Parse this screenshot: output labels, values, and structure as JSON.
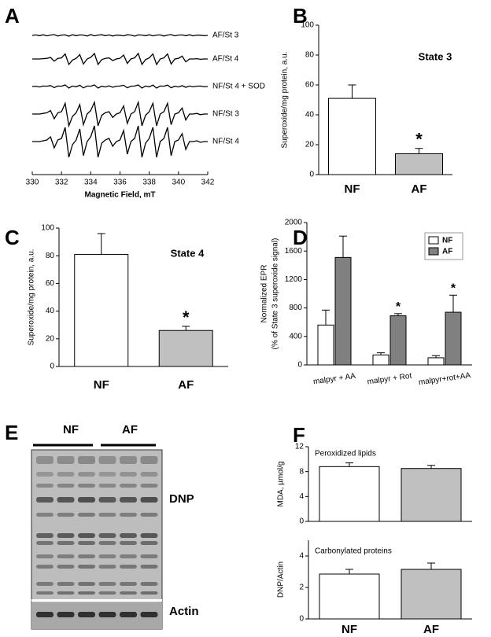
{
  "chart_data": [
    {
      "panel": "A",
      "type": "line",
      "x": [
        330,
        330.25,
        330.5,
        330.75,
        331,
        331.25,
        331.5,
        331.75,
        332,
        332.25,
        332.5,
        332.75,
        333,
        333.25,
        333.5,
        333.75,
        334,
        334.25,
        334.5,
        334.75,
        335,
        335.25,
        335.5,
        335.75,
        336,
        336.25,
        336.5,
        336.75,
        337,
        337.25,
        337.5,
        337.75,
        338,
        338.25,
        338.5,
        338.75,
        339,
        339.25,
        339.5,
        339.75,
        340,
        340.25,
        340.5,
        340.75,
        341,
        341.25,
        341.5,
        341.75,
        342
      ],
      "xlim": [
        330,
        342
      ],
      "xticks": [
        330,
        332,
        334,
        336,
        338,
        340,
        342
      ],
      "xlabel": "Magnetic Field, mT",
      "series": [
        {
          "name": "AF/St 3",
          "color": "#000000",
          "values": [
            0,
            0.03,
            -0.02,
            0.04,
            -0.03,
            0.02,
            0.05,
            -0.04,
            0.02,
            0.03,
            -0.05,
            0.04,
            -0.02,
            0.03,
            0.02,
            -0.04,
            0.05,
            -0.03,
            0.02,
            0.04,
            -0.02,
            0.03,
            -0.04,
            0.02,
            0.01,
            -0.03,
            0.04,
            0.02,
            -0.05,
            0.03,
            0.02,
            -0.02,
            0.04,
            -0.03,
            0.02,
            0.03,
            -0.04,
            0.02,
            0.05,
            -0.03,
            0.02,
            0.03,
            -0.02,
            0.04,
            -0.03,
            0.02,
            0.01,
            -0.02,
            0
          ]
        },
        {
          "name": "AF/St 4",
          "color": "#000000",
          "values": [
            0,
            0,
            0,
            0.02,
            0.04,
            0.1,
            -0.14,
            0.04,
            0.07,
            0.32,
            -0.35,
            -0.07,
            0.04,
            0.28,
            -0.32,
            0,
            0.1,
            0.35,
            -0.35,
            -0.04,
            0.04,
            0.07,
            -0.1,
            0,
            0.04,
            0.25,
            -0.28,
            0,
            0.07,
            0.35,
            -0.35,
            -0.04,
            0.07,
            0.32,
            -0.35,
            0,
            0.07,
            0.32,
            -0.32,
            0,
            0.04,
            0.18,
            -0.18,
            0,
            0,
            0.02,
            -0.02,
            0,
            0
          ]
        },
        {
          "name": "NF/St 4 + SOD",
          "color": "#000000",
          "values": [
            0,
            0.02,
            -0.03,
            0.03,
            0.02,
            0.06,
            -0.07,
            0.03,
            0.02,
            0.1,
            -0.1,
            0.03,
            -0.02,
            0.08,
            -0.09,
            0.03,
            0.02,
            0.1,
            -0.1,
            0.02,
            -0.03,
            0.04,
            -0.05,
            0.02,
            0.03,
            0.08,
            -0.08,
            0.02,
            0.03,
            0.1,
            -0.1,
            0.03,
            -0.02,
            0.09,
            -0.1,
            0.03,
            0.02,
            0.09,
            -0.08,
            0.02,
            -0.03,
            0.05,
            -0.05,
            0.03,
            -0.02,
            0.02,
            0.03,
            -0.02,
            0
          ]
        },
        {
          "name": "NF/St 3",
          "color": "#000000",
          "values": [
            0,
            0,
            0,
            0.04,
            0.08,
            0.22,
            -0.3,
            0.08,
            0.15,
            0.68,
            -0.75,
            -0.15,
            0.08,
            0.6,
            -0.68,
            0,
            0.22,
            0.75,
            -0.75,
            -0.08,
            0.08,
            0.15,
            -0.22,
            0,
            0.08,
            0.52,
            -0.6,
            0,
            0.15,
            0.75,
            -0.75,
            -0.08,
            0.15,
            0.68,
            -0.75,
            0,
            0.15,
            0.68,
            -0.68,
            0,
            0.08,
            0.38,
            -0.38,
            0,
            0,
            0.04,
            -0.04,
            0,
            0
          ]
        },
        {
          "name": "NF/St 4",
          "color": "#000000",
          "values": [
            0,
            0,
            0,
            0.05,
            0.1,
            0.3,
            -0.4,
            0.1,
            0.2,
            0.9,
            -1,
            -0.2,
            0.1,
            0.8,
            -0.9,
            0,
            0.3,
            1,
            -1,
            -0.1,
            0.1,
            0.2,
            -0.3,
            0,
            0.1,
            0.7,
            -0.8,
            0,
            0.2,
            1,
            -1,
            -0.1,
            0.2,
            0.9,
            -1,
            0,
            0.2,
            0.9,
            -0.9,
            0,
            0.1,
            0.5,
            -0.5,
            0,
            0,
            0.05,
            -0.05,
            0,
            0
          ]
        }
      ]
    },
    {
      "panel": "B",
      "type": "bar",
      "categories": [
        "NF",
        "AF"
      ],
      "values": [
        51,
        14
      ],
      "errors": [
        9,
        3.5
      ],
      "colors": [
        "#ffffff",
        "#c0c0c0"
      ],
      "significance": [
        null,
        "*"
      ],
      "annotation": "State 3",
      "ylabel": "Superoxide/mg protein, a.u.",
      "ylim": [
        0,
        100
      ],
      "yticks": [
        0,
        20,
        40,
        60,
        80,
        100
      ]
    },
    {
      "panel": "C",
      "type": "bar",
      "categories": [
        "NF",
        "AF"
      ],
      "values": [
        81,
        26
      ],
      "errors": [
        15,
        3
      ],
      "colors": [
        "#ffffff",
        "#c0c0c0"
      ],
      "significance": [
        null,
        "*"
      ],
      "annotation": "State 4",
      "ylabel": "Superoxide/mg protein, a.u.",
      "ylim": [
        0,
        100
      ],
      "yticks": [
        0,
        20,
        40,
        60,
        80,
        100
      ]
    },
    {
      "panel": "D",
      "type": "grouped_bar",
      "categories": [
        "malpyr + AA",
        "malpyr + Rot",
        "malpyr+rot+AA"
      ],
      "series": [
        {
          "name": "NF",
          "color": "#ffffff",
          "values": [
            560,
            140,
            100
          ],
          "errors": [
            210,
            30,
            30
          ],
          "significance": [
            null,
            null,
            null
          ]
        },
        {
          "name": "AF",
          "color": "#808080",
          "values": [
            1510,
            690,
            740
          ],
          "errors": [
            300,
            30,
            240
          ],
          "significance": [
            null,
            "*",
            "*"
          ]
        }
      ],
      "ylabel": [
        "Normalized EPR",
        "(% of State 3 superoxide signal)"
      ],
      "ylim": [
        0,
        2000
      ],
      "yticks": [
        0,
        400,
        800,
        1200,
        1600,
        2000
      ],
      "legend": "upper right"
    },
    {
      "panel": "F",
      "type": "bar",
      "title": "Peroxidized lipids",
      "values": [
        8.8,
        8.5
      ],
      "errors": [
        0.6,
        0.5
      ],
      "colors": [
        "#ffffff",
        "#c0c0c0"
      ],
      "ylabel": "MDA, µmol/g",
      "ylim": [
        0,
        12
      ],
      "yticks": [
        0,
        4,
        8,
        12
      ]
    },
    {
      "type": "bar",
      "title": "Carbonylated proteins",
      "categories": [
        "NF",
        "AF"
      ],
      "values": [
        2.85,
        3.15
      ],
      "errors": [
        0.3,
        0.4
      ],
      "colors": [
        "#ffffff",
        "#c0c0c0"
      ],
      "ylabel": "DNP/Actin",
      "ylim": [
        0,
        5
      ],
      "yticks": [
        0,
        2,
        4
      ]
    }
  ],
  "blot": {
    "panel": "E",
    "groups": [
      "NF",
      "AF"
    ],
    "bands": [
      "DNP",
      "Actin"
    ]
  }
}
